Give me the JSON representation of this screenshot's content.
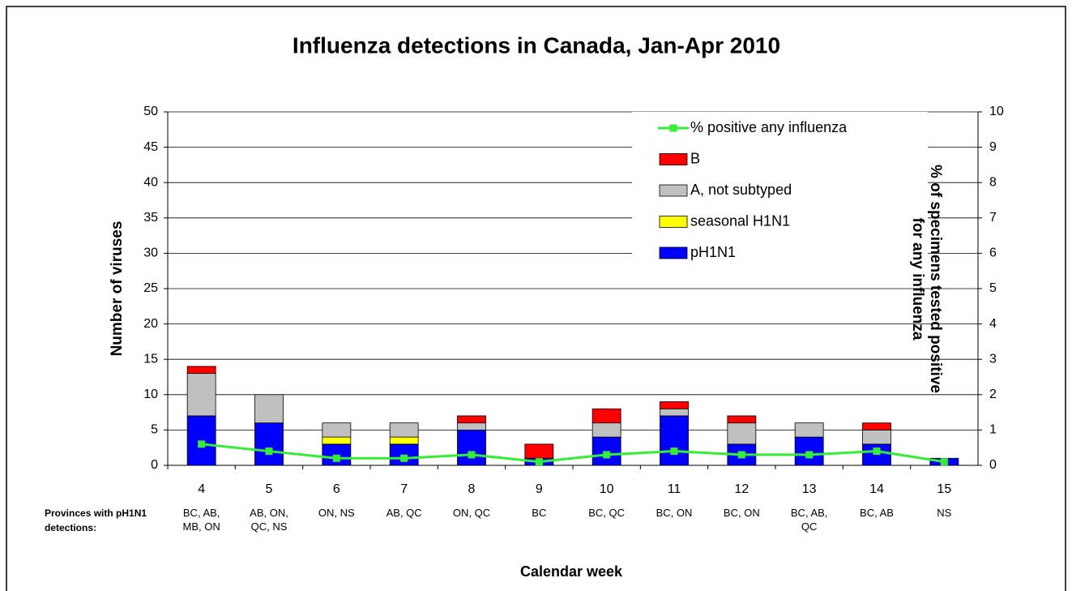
{
  "chart_data": {
    "type": "bar",
    "stacked": true,
    "title": "Influenza detections in Canada, Jan-Apr 2010",
    "xlabel": "Calendar week",
    "ylabel": "Number of viruses",
    "y2label": "% of specimens tested positive for any influenza",
    "categories": [
      "4",
      "5",
      "6",
      "7",
      "8",
      "9",
      "10",
      "11",
      "12",
      "13",
      "14",
      "15"
    ],
    "row_label": "Provinces with pH1N1 detections:",
    "provinces": [
      "BC, AB, MB, ON",
      "AB, ON, QC, NS",
      "ON, NS",
      "AB, QC",
      "ON, QC",
      "BC",
      "BC, QC",
      "BC, ON",
      "BC, ON",
      "BC, AB, QC",
      "BC, AB",
      "NS"
    ],
    "series": [
      {
        "name": "pH1N1",
        "color": "#0000ff",
        "values": [
          7,
          6,
          3,
          3,
          5,
          1,
          4,
          7,
          3,
          4,
          3,
          1
        ]
      },
      {
        "name": "seasonal H1N1",
        "color": "#ffff00",
        "values": [
          0,
          0,
          1,
          1,
          0,
          0,
          0,
          0,
          0,
          0,
          0,
          0
        ]
      },
      {
        "name": "A, not subtyped",
        "color": "#c0c0c0",
        "values": [
          6,
          4,
          2,
          2,
          1,
          0,
          2,
          1,
          3,
          2,
          2,
          0
        ]
      },
      {
        "name": "B",
        "color": "#ff0000",
        "values": [
          1,
          0,
          0,
          0,
          1,
          2,
          2,
          1,
          1,
          0,
          1,
          0
        ]
      },
      {
        "name": "% positive any influenza",
        "color": "#33ee33",
        "type": "line",
        "axis": "y2",
        "values": [
          0.6,
          0.4,
          0.2,
          0.2,
          0.3,
          0.1,
          0.3,
          0.4,
          0.3,
          0.3,
          0.4,
          0.1
        ]
      }
    ],
    "ylim": [
      0,
      50
    ],
    "yticks": [
      0,
      5,
      10,
      15,
      20,
      25,
      30,
      35,
      40,
      45,
      50
    ],
    "y2lim": [
      0,
      10
    ],
    "y2ticks": [
      0,
      1,
      2,
      3,
      4,
      5,
      6,
      7,
      8,
      9,
      10
    ],
    "grid": true,
    "legend": "top-right"
  }
}
